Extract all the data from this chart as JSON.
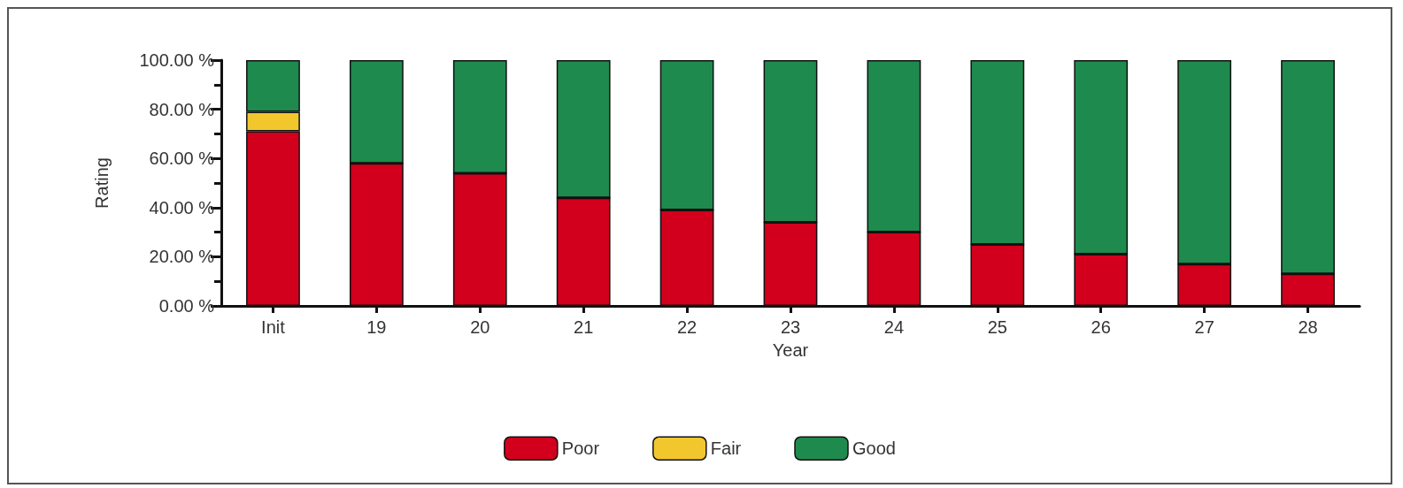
{
  "chart_data": {
    "type": "bar",
    "stacked": true,
    "xlabel": "Year",
    "ylabel": "Rating",
    "categories": [
      "Init",
      "19",
      "20",
      "21",
      "22",
      "23",
      "24",
      "25",
      "26",
      "27",
      "28"
    ],
    "series": [
      {
        "name": "Poor",
        "color": "#d2001c",
        "values": [
          71,
          58,
          54,
          44,
          39,
          34,
          30,
          25,
          21,
          17,
          13
        ]
      },
      {
        "name": "Fair",
        "color": "#f2c72e",
        "values": [
          8,
          0,
          0,
          0,
          0,
          0,
          0,
          0,
          0,
          0,
          0
        ]
      },
      {
        "name": "Good",
        "color": "#1e8a4e",
        "values": [
          21,
          42,
          46,
          56,
          61,
          66,
          70,
          75,
          79,
          83,
          87
        ]
      }
    ],
    "ylim": [
      0,
      100
    ],
    "yticks": [
      {
        "value": 0,
        "label": "0.00 %"
      },
      {
        "value": 20,
        "label": "20.00 %"
      },
      {
        "value": 40,
        "label": "40.00 %"
      },
      {
        "value": 60,
        "label": "60.00 %"
      },
      {
        "value": 80,
        "label": "80.00 %"
      },
      {
        "value": 100,
        "label": "100.00 %"
      }
    ],
    "grid": false,
    "legend": "bottom"
  }
}
